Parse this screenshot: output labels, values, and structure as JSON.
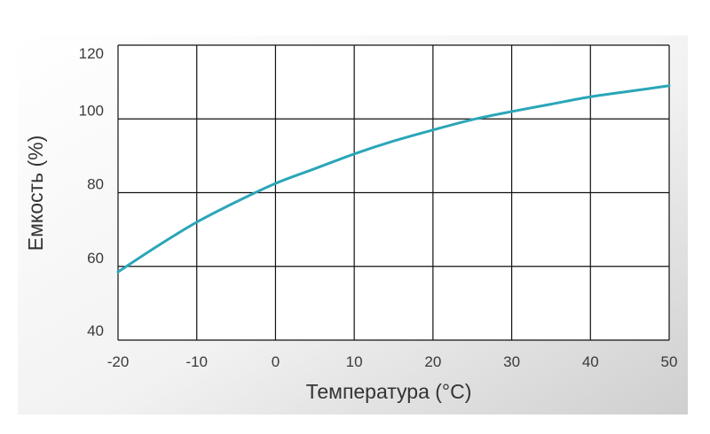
{
  "chart_data": {
    "type": "line",
    "title": "",
    "xlabel": "Температура (°C)",
    "ylabel": "Емкость (%)",
    "xlim": [
      -20,
      50
    ],
    "ylim": [
      40,
      120
    ],
    "x_ticks": [
      "-20",
      "-10",
      "0",
      "10",
      "20",
      "30",
      "40",
      "50"
    ],
    "y_ticks": [
      "40",
      "60",
      "80",
      "100",
      "120"
    ],
    "grid": true,
    "legend": "none",
    "series": [
      {
        "color": "#2aa6b8",
        "x": [
          -20,
          -15,
          -10,
          -5,
          0,
          5,
          10,
          15,
          20,
          25,
          30,
          35,
          40,
          45,
          50
        ],
        "y": [
          58.5,
          65.5,
          72,
          77.5,
          82.5,
          86.5,
          90.5,
          94,
          97,
          99.8,
          102,
          104,
          106,
          107.5,
          109
        ]
      }
    ]
  }
}
